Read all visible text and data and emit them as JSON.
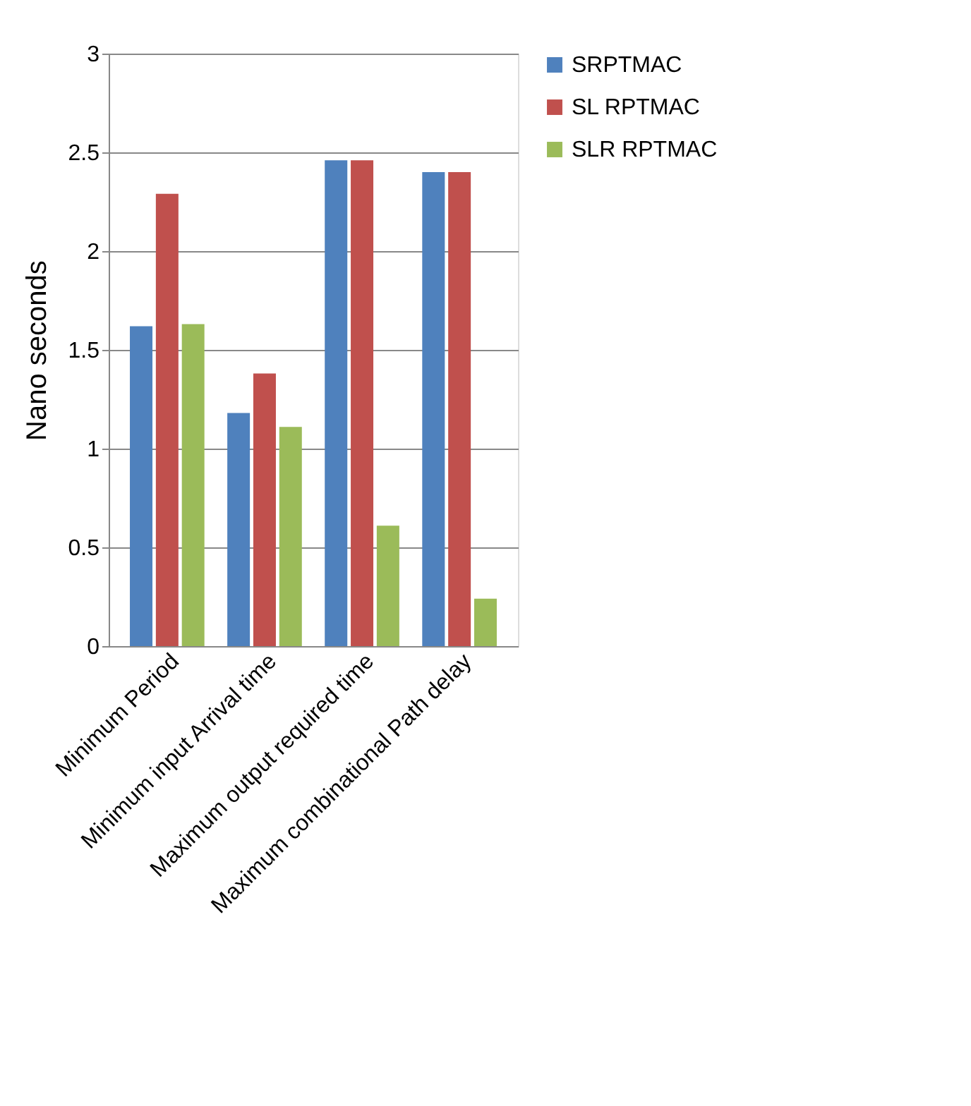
{
  "chart_data": {
    "type": "bar",
    "ylabel": "Nano seconds",
    "categories": [
      "Minimum Period",
      "Minimum input Arrival time",
      "Maximum output required time",
      "Maximum combinational Path delay"
    ],
    "series": [
      {
        "name": "SRPTMAC",
        "color": "#4f81bd",
        "values": [
          1.62,
          1.18,
          2.46,
          2.4
        ]
      },
      {
        "name": "SL RPTMAC",
        "color": "#c0504d",
        "values": [
          2.29,
          1.38,
          2.46,
          2.4
        ]
      },
      {
        "name": "SLR  RPTMAC",
        "color": "#9bbb59",
        "values": [
          1.63,
          1.11,
          0.61,
          0.24
        ]
      }
    ],
    "ylim": [
      0,
      3
    ],
    "yticks": [
      0,
      0.5,
      1,
      1.5,
      2,
      2.5,
      3
    ],
    "grid": "y",
    "legend": "right"
  }
}
